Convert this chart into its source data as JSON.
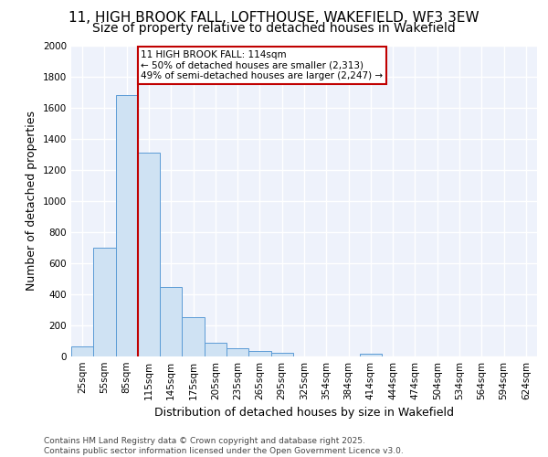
{
  "title": "11, HIGH BROOK FALL, LOFTHOUSE, WAKEFIELD, WF3 3EW",
  "subtitle": "Size of property relative to detached houses in Wakefield",
  "xlabel": "Distribution of detached houses by size in Wakefield",
  "ylabel": "Number of detached properties",
  "footer_line1": "Contains HM Land Registry data © Crown copyright and database right 2025.",
  "footer_line2": "Contains public sector information licensed under the Open Government Licence v3.0.",
  "categories": [
    "25sqm",
    "55sqm",
    "85sqm",
    "115sqm",
    "145sqm",
    "175sqm",
    "205sqm",
    "235sqm",
    "265sqm",
    "295sqm",
    "325sqm",
    "354sqm",
    "384sqm",
    "414sqm",
    "444sqm",
    "474sqm",
    "504sqm",
    "534sqm",
    "564sqm",
    "594sqm",
    "624sqm"
  ],
  "values": [
    65,
    700,
    1680,
    1310,
    450,
    255,
    90,
    55,
    35,
    25,
    0,
    0,
    0,
    15,
    0,
    0,
    0,
    0,
    0,
    0,
    0
  ],
  "bar_color": "#cfe2f3",
  "bar_edge_color": "#5b9bd5",
  "highlight_line_index": 3,
  "highlight_line_color": "#c00000",
  "annotation_text_line1": "11 HIGH BROOK FALL: 114sqm",
  "annotation_text_line2": "← 50% of detached houses are smaller (2,313)",
  "annotation_text_line3": "49% of semi-detached houses are larger (2,247) →",
  "annotation_box_color": "#c00000",
  "ylim": [
    0,
    2000
  ],
  "yticks": [
    0,
    200,
    400,
    600,
    800,
    1000,
    1200,
    1400,
    1600,
    1800,
    2000
  ],
  "bg_color": "#eef2fb",
  "grid_color": "#ffffff",
  "title_fontsize": 11,
  "subtitle_fontsize": 10,
  "axis_label_fontsize": 9,
  "tick_fontsize": 7.5,
  "footer_fontsize": 6.5
}
